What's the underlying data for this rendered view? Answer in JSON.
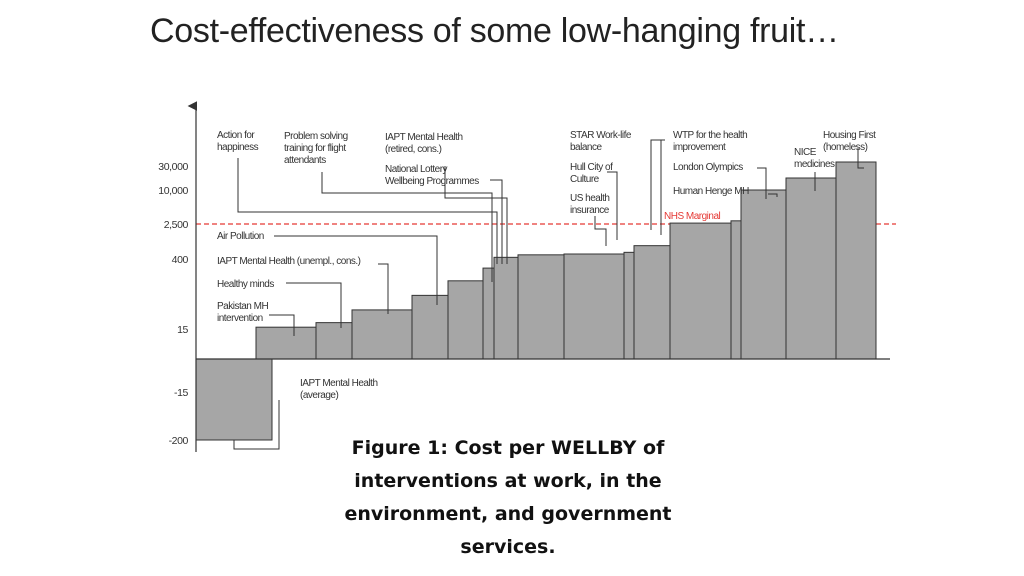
{
  "slide": {
    "title": "Cost-effectiveness of some low-hanging fruit…",
    "caption": "Figure 1: Cost per WELLBY of interventions at work, in the environment, and government services."
  },
  "colors": {
    "bar_fill": "#a6a6a6",
    "bar_stroke": "#333333",
    "threshold": "#e53935",
    "axis": "#333333",
    "text": "#333333"
  },
  "chart_data": {
    "type": "bar",
    "yscale": "categorical-ordinal",
    "y_ticks": [
      "-200",
      "-15",
      "15",
      "400",
      "2,500",
      "10,000",
      "30,000"
    ],
    "threshold": {
      "label": "NHS Marginal",
      "value": 2500,
      "style": "dashed",
      "color": "#e53935"
    },
    "categories": [
      "IAPT Mental Health (average)",
      "Pakistan MH intervention",
      "Healthy minds",
      "IAPT Mental Health (unempl., cons.)",
      "Air Pollution",
      "IAPT Mental Health (retired, cons.)",
      "National Lottery Wellbeing Programmes",
      "Action for happiness",
      "Problem solving training for flight attendants",
      "US health insurance",
      "Hull City of Culture",
      "STAR Work-life balance",
      "WTP for the health improvement",
      "London Olympics",
      "Human Henge MH",
      "NICE medicines",
      "Housing First (homeless)"
    ],
    "values": [
      -200,
      25,
      50,
      120,
      200,
      280,
      350,
      500,
      650,
      700,
      800,
      1200,
      2700,
      3200,
      10000,
      20000,
      35000
    ],
    "labels": [
      [
        "IAPT Mental Health",
        "(average)"
      ],
      [
        "Pakistan MH",
        "intervention"
      ],
      [
        "Healthy minds"
      ],
      [
        "IAPT Mental Health (unempl., cons.)"
      ],
      [
        "Air Pollution"
      ],
      [
        "IAPT Mental Health",
        "(retired, cons.)"
      ],
      [
        "National Lottery",
        "Wellbeing Programmes"
      ],
      [
        "Action for",
        "happiness"
      ],
      [
        "Problem solving",
        "training for flight",
        "attendants"
      ],
      [
        "US health",
        "insurance"
      ],
      [
        "Hull City of",
        "Culture"
      ],
      [
        "STAR Work-life",
        "balance"
      ],
      [
        "WTP for the health",
        "improvement"
      ],
      [
        "London Olympics"
      ],
      [
        "Human Henge MH"
      ],
      [
        "NICE",
        "medicines"
      ],
      [
        "Housing First",
        "(homeless)"
      ]
    ],
    "legend": "none",
    "grid": false
  }
}
